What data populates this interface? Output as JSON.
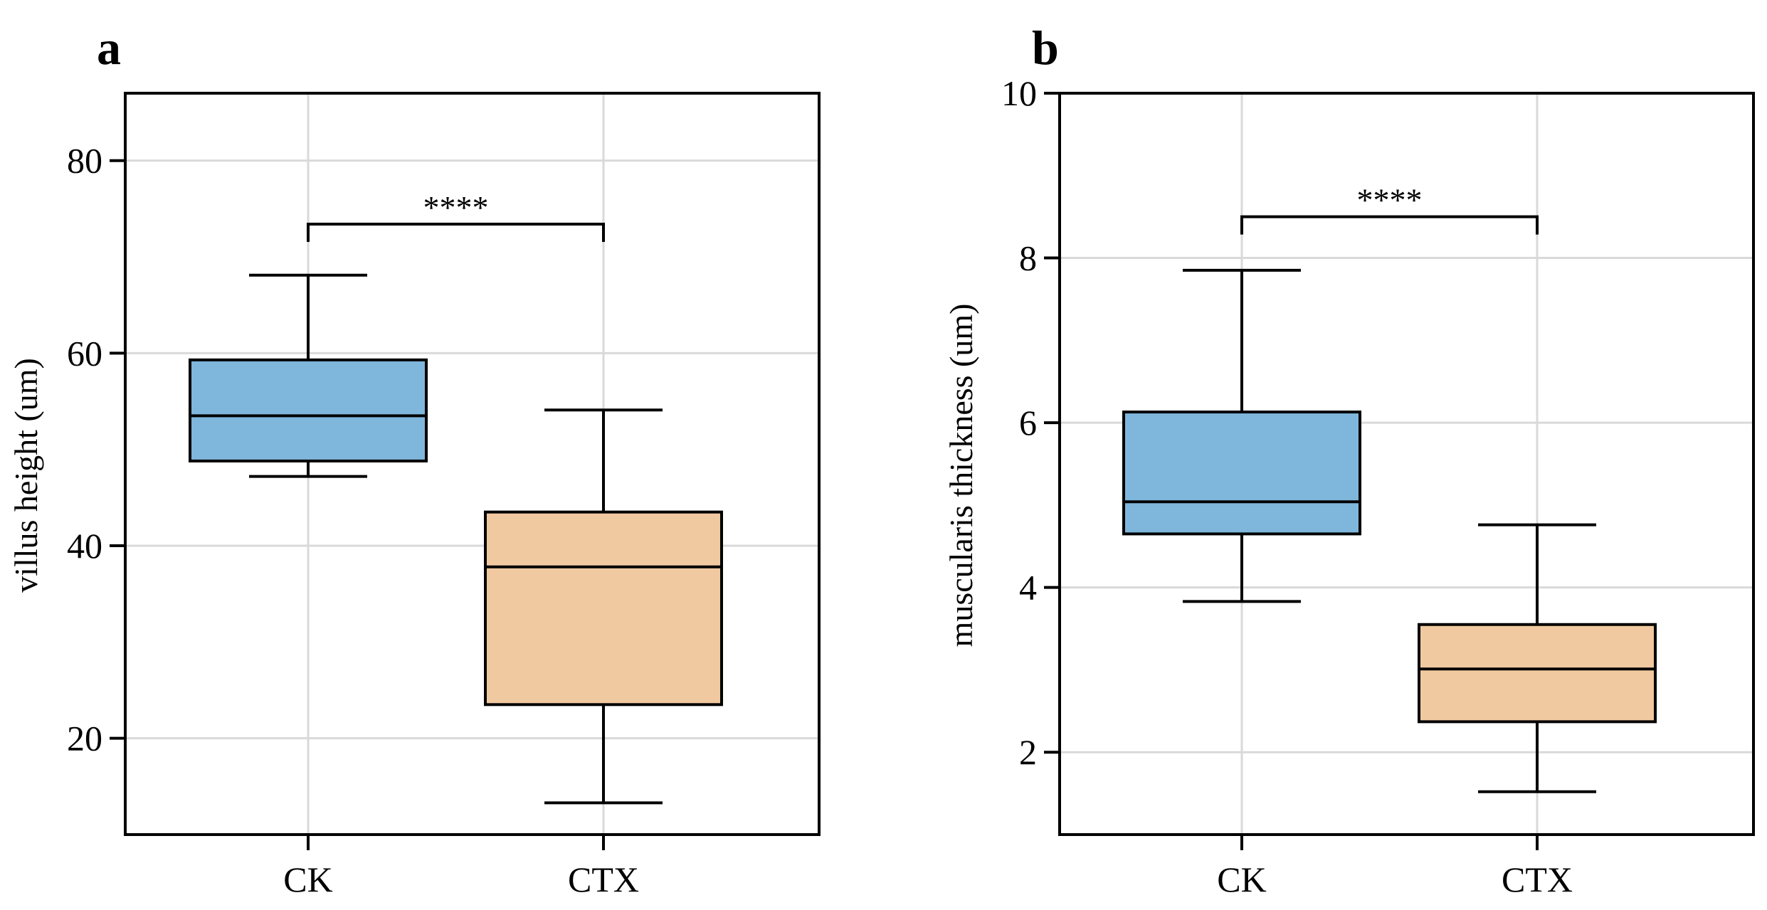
{
  "chart_data": [
    {
      "type": "box",
      "panel_label": "a",
      "categories": [
        "CK",
        "CTX"
      ],
      "ylabel": "villus height (um)",
      "ylim": [
        10,
        87
      ],
      "yticks": [
        20,
        40,
        60,
        80
      ],
      "grid": true,
      "boxes": [
        {
          "category": "CK",
          "whisker_low": 47.2,
          "q1": 48.8,
          "median": 53.5,
          "q3": 59.3,
          "whisker_high": 68.1,
          "color": "#7fb6dc"
        },
        {
          "category": "CTX",
          "whisker_low": 13.3,
          "q1": 23.5,
          "median": 37.8,
          "q3": 43.5,
          "whisker_high": 54.1,
          "color": "#f1c9a0"
        }
      ],
      "significance": {
        "from": "CK",
        "to": "CTX",
        "label": "****",
        "y": 73.4
      }
    },
    {
      "type": "box",
      "panel_label": "b",
      "categories": [
        "CK",
        "CTX"
      ],
      "ylabel": "muscularis thickness (um)",
      "ylim": [
        1,
        10
      ],
      "yticks": [
        2,
        4,
        6,
        8,
        10
      ],
      "grid": true,
      "boxes": [
        {
          "category": "CK",
          "whisker_low": 3.83,
          "q1": 4.65,
          "median": 5.04,
          "q3": 6.13,
          "whisker_high": 7.85,
          "color": "#7fb6dc"
        },
        {
          "category": "CTX",
          "whisker_low": 1.52,
          "q1": 2.37,
          "median": 3.01,
          "q3": 3.55,
          "whisker_high": 4.76,
          "color": "#f1c9a0"
        }
      ],
      "significance": {
        "from": "CK",
        "to": "CTX",
        "label": "****",
        "y": 8.5
      }
    }
  ]
}
